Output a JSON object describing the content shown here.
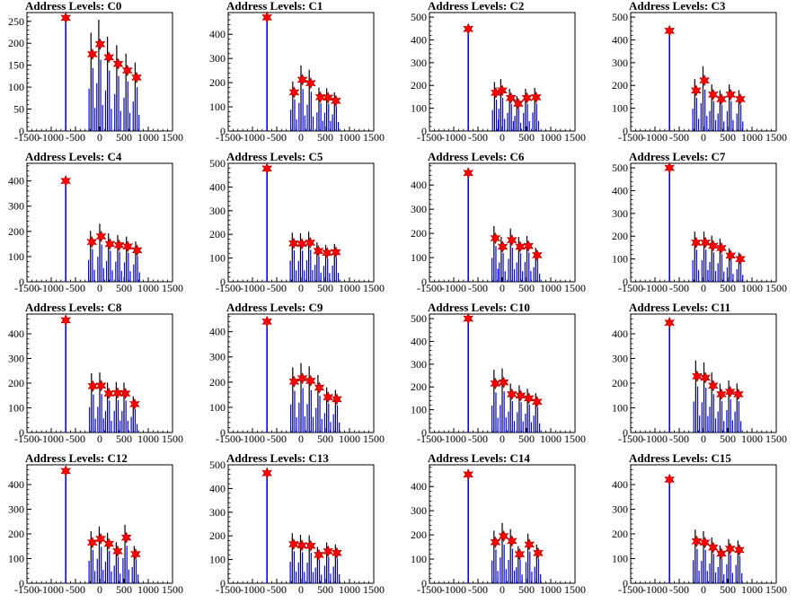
{
  "colors": {
    "histogram": "#0000ff",
    "marker": "#ff0000",
    "axis": "#000000"
  },
  "chart_data": [
    {
      "type": "bar",
      "title": "Address Levels: C0",
      "xlim": [
        -1500,
        1500
      ],
      "ylim": [
        0,
        270
      ],
      "x_ticks": [
        "-1500",
        "-1000",
        "-500",
        "0",
        "500",
        "1000",
        "1500"
      ],
      "y_ticks": [
        "0",
        "50",
        "100",
        "150",
        "200",
        "250"
      ],
      "peaks": [
        [
          -700,
          258
        ],
        [
          -150,
          175
        ],
        [
          10,
          198
        ],
        [
          190,
          168
        ],
        [
          380,
          153
        ],
        [
          570,
          138
        ],
        [
          760,
          122
        ]
      ]
    },
    {
      "type": "bar",
      "title": "Address Levels: C1",
      "xlim": [
        -1500,
        1500
      ],
      "ylim": [
        0,
        490
      ],
      "x_ticks": [
        "-1500",
        "-1000",
        "-500",
        "0",
        "500",
        "1000",
        "1500"
      ],
      "y_ticks": [
        "0",
        "100",
        "200",
        "300",
        "400"
      ],
      "peaks": [
        [
          -700,
          470
        ],
        [
          -140,
          160
        ],
        [
          30,
          212
        ],
        [
          200,
          198
        ],
        [
          400,
          140
        ],
        [
          560,
          138
        ],
        [
          720,
          125
        ]
      ]
    },
    {
      "type": "bar",
      "title": "Address Levels: C2",
      "xlim": [
        -1500,
        1500
      ],
      "ylim": [
        0,
        520
      ],
      "x_ticks": [
        "-1500",
        "-1000",
        "-500",
        "0",
        "500",
        "1000",
        "1500"
      ],
      "y_ticks": [
        "0",
        "100",
        "200",
        "300",
        "400",
        "500"
      ],
      "peaks": [
        [
          -700,
          448
        ],
        [
          -130,
          168
        ],
        [
          0,
          178
        ],
        [
          180,
          145
        ],
        [
          330,
          120
        ],
        [
          510,
          145
        ],
        [
          700,
          148
        ]
      ]
    },
    {
      "type": "bar",
      "title": "Address Levels: C3",
      "xlim": [
        -1500,
        1500
      ],
      "ylim": [
        0,
        520
      ],
      "x_ticks": [
        "-1500",
        "-1000",
        "-500",
        "0",
        "500",
        "1000",
        "1500"
      ],
      "y_ticks": [
        "0",
        "100",
        "200",
        "300",
        "400",
        "500"
      ],
      "peaks": [
        [
          -700,
          440
        ],
        [
          -150,
          178
        ],
        [
          20,
          222
        ],
        [
          200,
          160
        ],
        [
          370,
          140
        ],
        [
          560,
          160
        ],
        [
          760,
          140
        ]
      ]
    },
    {
      "type": "bar",
      "title": "Address Levels: C4",
      "xlim": [
        -1500,
        1500
      ],
      "ylim": [
        0,
        470
      ],
      "x_ticks": [
        "-1500",
        "-1000",
        "-500",
        "0",
        "500",
        "1000",
        "1500"
      ],
      "y_ticks": [
        "0",
        "100",
        "200",
        "300",
        "400"
      ],
      "peaks": [
        [
          -700,
          400
        ],
        [
          -160,
          158
        ],
        [
          30,
          180
        ],
        [
          210,
          150
        ],
        [
          400,
          145
        ],
        [
          580,
          140
        ],
        [
          770,
          125
        ]
      ]
    },
    {
      "type": "bar",
      "title": "Address Levels: C5",
      "xlim": [
        -1500,
        1500
      ],
      "ylim": [
        0,
        500
      ],
      "x_ticks": [
        "-1500",
        "-1000",
        "-500",
        "0",
        "500",
        "1000",
        "1500"
      ],
      "y_ticks": [
        "0",
        "100",
        "200",
        "300",
        "400",
        "500"
      ],
      "peaks": [
        [
          -700,
          478
        ],
        [
          -150,
          162
        ],
        [
          20,
          160
        ],
        [
          190,
          165
        ],
        [
          360,
          130
        ],
        [
          540,
          122
        ],
        [
          720,
          125
        ]
      ]
    },
    {
      "type": "bar",
      "title": "Address Levels: C6",
      "xlim": [
        -1500,
        1500
      ],
      "ylim": [
        0,
        490
      ],
      "x_ticks": [
        "-1500",
        "-1000",
        "-500",
        "0",
        "500",
        "1000",
        "1500"
      ],
      "y_ticks": [
        "0",
        "100",
        "200",
        "300",
        "400"
      ],
      "peaks": [
        [
          -700,
          450
        ],
        [
          -140,
          180
        ],
        [
          10,
          145
        ],
        [
          200,
          172
        ],
        [
          370,
          145
        ],
        [
          540,
          148
        ],
        [
          720,
          110
        ]
      ]
    },
    {
      "type": "bar",
      "title": "Address Levels: C7",
      "xlim": [
        -1500,
        1500
      ],
      "ylim": [
        0,
        520
      ],
      "x_ticks": [
        "-1500",
        "-1000",
        "-500",
        "0",
        "500",
        "1000",
        "1500"
      ],
      "y_ticks": [
        "0",
        "100",
        "200",
        "300",
        "400",
        "500"
      ],
      "peaks": [
        [
          -700,
          500
        ],
        [
          -150,
          172
        ],
        [
          40,
          172
        ],
        [
          200,
          158
        ],
        [
          370,
          148
        ],
        [
          560,
          115
        ],
        [
          760,
          100
        ]
      ]
    },
    {
      "type": "bar",
      "title": "Address Levels: C8",
      "xlim": [
        -1500,
        1500
      ],
      "ylim": [
        0,
        480
      ],
      "x_ticks": [
        "-1500",
        "-1000",
        "-500",
        "0",
        "500",
        "1000",
        "1500"
      ],
      "y_ticks": [
        "0",
        "100",
        "200",
        "300",
        "400"
      ],
      "peaks": [
        [
          -700,
          455
        ],
        [
          -140,
          188
        ],
        [
          30,
          190
        ],
        [
          190,
          158
        ],
        [
          370,
          160
        ],
        [
          530,
          158
        ],
        [
          720,
          115
        ]
      ]
    },
    {
      "type": "bar",
      "title": "Address Levels: C9",
      "xlim": [
        -1500,
        1500
      ],
      "ylim": [
        0,
        470
      ],
      "x_ticks": [
        "-1500",
        "-1000",
        "-500",
        "0",
        "500",
        "1000",
        "1500"
      ],
      "y_ticks": [
        "0",
        "100",
        "200",
        "300",
        "400"
      ],
      "peaks": [
        [
          -700,
          440
        ],
        [
          -140,
          202
        ],
        [
          30,
          215
        ],
        [
          200,
          205
        ],
        [
          380,
          178
        ],
        [
          560,
          140
        ],
        [
          740,
          132
        ]
      ]
    },
    {
      "type": "bar",
      "title": "Address Levels: C10",
      "xlim": [
        -1500,
        1500
      ],
      "ylim": [
        0,
        520
      ],
      "x_ticks": [
        "-1500",
        "-1000",
        "-500",
        "0",
        "500",
        "1000",
        "1500"
      ],
      "y_ticks": [
        "0",
        "100",
        "200",
        "300",
        "400",
        "500"
      ],
      "peaks": [
        [
          -700,
          500
        ],
        [
          -140,
          215
        ],
        [
          30,
          220
        ],
        [
          200,
          168
        ],
        [
          380,
          162
        ],
        [
          550,
          150
        ],
        [
          720,
          135
        ]
      ]
    },
    {
      "type": "bar",
      "title": "Address Levels: C11",
      "xlim": [
        -1500,
        1500
      ],
      "ylim": [
        0,
        480
      ],
      "x_ticks": [
        "-1500",
        "-1000",
        "-500",
        "0",
        "500",
        "1000",
        "1500"
      ],
      "y_ticks": [
        "0",
        "100",
        "200",
        "300",
        "400"
      ],
      "peaks": [
        [
          -700,
          445
        ],
        [
          -130,
          228
        ],
        [
          40,
          222
        ],
        [
          200,
          190
        ],
        [
          370,
          155
        ],
        [
          550,
          165
        ],
        [
          720,
          155
        ]
      ]
    },
    {
      "type": "bar",
      "title": "Address Levels: C12",
      "xlim": [
        -1500,
        1500
      ],
      "ylim": [
        0,
        480
      ],
      "x_ticks": [
        "-1500",
        "-1000",
        "-500",
        "0",
        "500",
        "1000",
        "1500"
      ],
      "y_ticks": [
        "0",
        "100",
        "200",
        "300",
        "400"
      ],
      "peaks": [
        [
          -700,
          455
        ],
        [
          -150,
          165
        ],
        [
          20,
          180
        ],
        [
          190,
          160
        ],
        [
          370,
          130
        ],
        [
          550,
          185
        ],
        [
          740,
          118
        ]
      ]
    },
    {
      "type": "bar",
      "title": "Address Levels: C13",
      "xlim": [
        -1500,
        1500
      ],
      "ylim": [
        0,
        500
      ],
      "x_ticks": [
        "-1500",
        "-1000",
        "-500",
        "0",
        "500",
        "1000",
        "1500"
      ],
      "y_ticks": [
        "0",
        "100",
        "200",
        "300",
        "400",
        "500"
      ],
      "peaks": [
        [
          -700,
          465
        ],
        [
          -150,
          165
        ],
        [
          20,
          160
        ],
        [
          200,
          158
        ],
        [
          370,
          120
        ],
        [
          560,
          135
        ],
        [
          740,
          128
        ]
      ]
    },
    {
      "type": "bar",
      "title": "Address Levels: C14",
      "xlim": [
        -1500,
        1500
      ],
      "ylim": [
        0,
        490
      ],
      "x_ticks": [
        "-1500",
        "-1000",
        "-500",
        "0",
        "500",
        "1000",
        "1500"
      ],
      "y_ticks": [
        "0",
        "100",
        "200",
        "300",
        "400"
      ],
      "peaks": [
        [
          -700,
          450
        ],
        [
          -140,
          170
        ],
        [
          30,
          195
        ],
        [
          200,
          175
        ],
        [
          360,
          120
        ],
        [
          560,
          160
        ],
        [
          740,
          125
        ]
      ]
    },
    {
      "type": "bar",
      "title": "Address Levels: C15",
      "xlim": [
        -1500,
        1500
      ],
      "ylim": [
        0,
        480
      ],
      "x_ticks": [
        "-1500",
        "-1000",
        "-500",
        "0",
        "500",
        "1000",
        "1500"
      ],
      "y_ticks": [
        "0",
        "100",
        "200",
        "300",
        "400"
      ],
      "peaks": [
        [
          -700,
          420
        ],
        [
          -140,
          170
        ],
        [
          30,
          165
        ],
        [
          200,
          145
        ],
        [
          370,
          120
        ],
        [
          550,
          140
        ],
        [
          740,
          135
        ]
      ]
    }
  ]
}
